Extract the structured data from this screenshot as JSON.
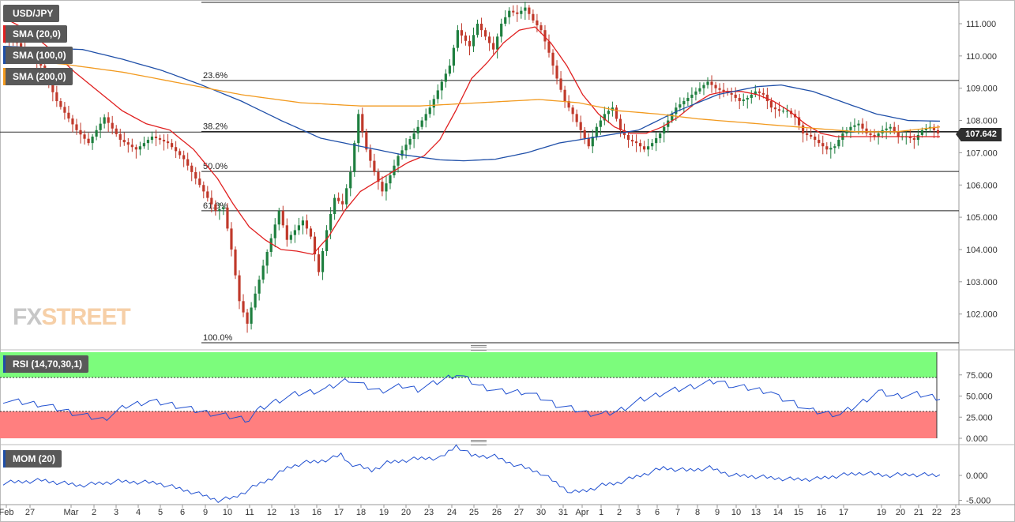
{
  "chart_data": {
    "type": "candlestick",
    "symbol": "USD/JPY",
    "last_price": "107.642",
    "price_axis": {
      "ylim": [
        101.2,
        111.7
      ],
      "ticks": [
        "111.000",
        "110.000",
        "109.000",
        "108.000",
        "107.000",
        "106.000",
        "105.000",
        "104.000",
        "103.000",
        "102.000"
      ],
      "tick_values": [
        111,
        110,
        109,
        108,
        107,
        106,
        105,
        104,
        103,
        102
      ]
    },
    "date_axis": {
      "labels": [
        "Feb",
        "27",
        "Mar",
        "2",
        "3",
        "4",
        "5",
        "6",
        "9",
        "10",
        "11",
        "12",
        "13",
        "16",
        "17",
        "18",
        "19",
        "20",
        "23",
        "24",
        "25",
        "26",
        "27",
        "30",
        "31",
        "Apr",
        "1",
        "2",
        "3",
        "6",
        "7",
        "8",
        "9",
        "10",
        "13",
        "14",
        "15",
        "16",
        "17",
        "19",
        "20",
        "21",
        "22",
        "23"
      ]
    },
    "fibonacci": [
      {
        "label": "23.6%",
        "value": 109.24
      },
      {
        "label": "38.2%",
        "value": 107.66
      },
      {
        "label": "50.0%",
        "value": 106.42
      },
      {
        "label": "61.8%",
        "value": 105.2
      },
      {
        "label": "100.0%",
        "value": 101.2
      }
    ],
    "price_anchors": [
      [
        0,
        110.5
      ],
      [
        4,
        110.4
      ],
      [
        10,
        109.7
      ],
      [
        14,
        108.6
      ],
      [
        19,
        107.7
      ],
      [
        22,
        107.3
      ],
      [
        26,
        108.1
      ],
      [
        30,
        107.4
      ],
      [
        34,
        107.1
      ],
      [
        38,
        107.5
      ],
      [
        42,
        107.3
      ],
      [
        46,
        106.8
      ],
      [
        50,
        106.0
      ],
      [
        54,
        105.2
      ],
      [
        56,
        105.3
      ],
      [
        58,
        104.0
      ],
      [
        60,
        102.4
      ],
      [
        62,
        101.7
      ],
      [
        63,
        102.2
      ],
      [
        66,
        103.5
      ],
      [
        70,
        105.2
      ],
      [
        72,
        104.3
      ],
      [
        76,
        104.9
      ],
      [
        78,
        104.4
      ],
      [
        80,
        103.3
      ],
      [
        82,
        104.6
      ],
      [
        84,
        105.6
      ],
      [
        86,
        105.4
      ],
      [
        88,
        106.4
      ],
      [
        90,
        108.2
      ],
      [
        92,
        107.1
      ],
      [
        94,
        106.4
      ],
      [
        96,
        105.8
      ],
      [
        98,
        106.3
      ],
      [
        100,
        106.9
      ],
      [
        104,
        107.6
      ],
      [
        108,
        108.4
      ],
      [
        111,
        109.2
      ],
      [
        113,
        109.7
      ],
      [
        115,
        110.8
      ],
      [
        118,
        110.3
      ],
      [
        120,
        111.0
      ],
      [
        122,
        110.6
      ],
      [
        124,
        110.2
      ],
      [
        126,
        111.0
      ],
      [
        128,
        111.4
      ],
      [
        130,
        111.3
      ],
      [
        132,
        111.5
      ],
      [
        134,
        111.1
      ],
      [
        136,
        110.8
      ],
      [
        138,
        110.1
      ],
      [
        140,
        109.3
      ],
      [
        142,
        108.6
      ],
      [
        144,
        108.2
      ],
      [
        146,
        107.7
      ],
      [
        148,
        107.2
      ],
      [
        150,
        107.8
      ],
      [
        152,
        108.2
      ],
      [
        154,
        108.4
      ],
      [
        156,
        107.7
      ],
      [
        158,
        107.4
      ],
      [
        160,
        107.3
      ],
      [
        162,
        107.1
      ],
      [
        164,
        107.3
      ],
      [
        166,
        107.6
      ],
      [
        168,
        108.0
      ],
      [
        170,
        108.4
      ],
      [
        172,
        108.6
      ],
      [
        174,
        108.8
      ],
      [
        176,
        109.0
      ],
      [
        178,
        109.2
      ],
      [
        180,
        109.0
      ],
      [
        182,
        108.9
      ],
      [
        184,
        108.8
      ],
      [
        186,
        108.6
      ],
      [
        188,
        108.7
      ],
      [
        190,
        108.9
      ],
      [
        192,
        108.8
      ],
      [
        194,
        108.4
      ],
      [
        196,
        108.3
      ],
      [
        198,
        108.3
      ],
      [
        200,
        108.1
      ],
      [
        202,
        107.6
      ],
      [
        204,
        107.5
      ],
      [
        206,
        107.3
      ],
      [
        208,
        107.1
      ],
      [
        210,
        107.2
      ],
      [
        212,
        107.6
      ],
      [
        214,
        107.8
      ],
      [
        216,
        107.9
      ],
      [
        218,
        107.6
      ],
      [
        220,
        107.5
      ],
      [
        222,
        107.7
      ],
      [
        224,
        107.8
      ],
      [
        226,
        107.5
      ],
      [
        228,
        107.5
      ],
      [
        230,
        107.4
      ],
      [
        232,
        107.7
      ],
      [
        234,
        107.8
      ],
      [
        236,
        107.6
      ]
    ],
    "series": [
      {
        "name": "SMA (20,0)",
        "color": "#e02020",
        "anchors": [
          [
            0,
            111.2
          ],
          [
            6,
            110.8
          ],
          [
            12,
            110.2
          ],
          [
            18,
            109.5
          ],
          [
            24,
            108.9
          ],
          [
            30,
            108.3
          ],
          [
            36,
            107.9
          ],
          [
            42,
            107.7
          ],
          [
            48,
            107.1
          ],
          [
            54,
            106.2
          ],
          [
            58,
            105.4
          ],
          [
            62,
            104.7
          ],
          [
            66,
            104.3
          ],
          [
            70,
            104.0
          ],
          [
            74,
            103.95
          ],
          [
            78,
            103.85
          ],
          [
            82,
            104.4
          ],
          [
            86,
            105.2
          ],
          [
            90,
            105.8
          ],
          [
            94,
            106.1
          ],
          [
            98,
            106.4
          ],
          [
            102,
            106.7
          ],
          [
            106,
            106.9
          ],
          [
            110,
            107.4
          ],
          [
            114,
            108.3
          ],
          [
            118,
            109.3
          ],
          [
            122,
            109.8
          ],
          [
            126,
            110.4
          ],
          [
            130,
            110.8
          ],
          [
            134,
            110.9
          ],
          [
            138,
            110.4
          ],
          [
            142,
            109.7
          ],
          [
            146,
            108.8
          ],
          [
            150,
            108.2
          ],
          [
            154,
            107.8
          ],
          [
            158,
            107.6
          ],
          [
            162,
            107.6
          ],
          [
            166,
            107.8
          ],
          [
            170,
            108.1
          ],
          [
            174,
            108.5
          ],
          [
            178,
            108.8
          ],
          [
            182,
            108.9
          ],
          [
            186,
            108.9
          ],
          [
            190,
            108.8
          ],
          [
            194,
            108.6
          ],
          [
            198,
            108.3
          ],
          [
            202,
            107.9
          ],
          [
            206,
            107.6
          ],
          [
            210,
            107.5
          ],
          [
            214,
            107.5
          ],
          [
            218,
            107.5
          ],
          [
            222,
            107.5
          ],
          [
            226,
            107.5
          ],
          [
            230,
            107.5
          ],
          [
            236,
            107.5
          ]
        ]
      },
      {
        "name": "SMA (100,0)",
        "color": "#1f4fa8",
        "anchors": [
          [
            0,
            110.3
          ],
          [
            10,
            110.25
          ],
          [
            20,
            110.2
          ],
          [
            30,
            109.9
          ],
          [
            40,
            109.55
          ],
          [
            50,
            109.1
          ],
          [
            60,
            108.6
          ],
          [
            70,
            108.0
          ],
          [
            80,
            107.45
          ],
          [
            90,
            107.2
          ],
          [
            100,
            106.95
          ],
          [
            110,
            106.78
          ],
          [
            116,
            106.75
          ],
          [
            124,
            106.8
          ],
          [
            132,
            107.0
          ],
          [
            140,
            107.3
          ],
          [
            150,
            107.5
          ],
          [
            160,
            107.7
          ],
          [
            170,
            108.3
          ],
          [
            180,
            108.8
          ],
          [
            190,
            109.05
          ],
          [
            196,
            109.1
          ],
          [
            204,
            108.9
          ],
          [
            212,
            108.55
          ],
          [
            220,
            108.2
          ],
          [
            228,
            108.0
          ],
          [
            236,
            107.98
          ]
        ]
      },
      {
        "name": "SMA (200,0)",
        "color": "#f29a1f",
        "anchors": [
          [
            0,
            109.9
          ],
          [
            15,
            109.75
          ],
          [
            30,
            109.5
          ],
          [
            45,
            109.15
          ],
          [
            60,
            108.8
          ],
          [
            75,
            108.55
          ],
          [
            90,
            108.45
          ],
          [
            105,
            108.45
          ],
          [
            120,
            108.55
          ],
          [
            135,
            108.65
          ],
          [
            145,
            108.55
          ],
          [
            155,
            108.3
          ],
          [
            165,
            108.2
          ],
          [
            175,
            108.05
          ],
          [
            185,
            107.95
          ],
          [
            195,
            107.85
          ],
          [
            205,
            107.75
          ],
          [
            215,
            107.65
          ],
          [
            225,
            107.65
          ],
          [
            236,
            107.8
          ]
        ]
      }
    ],
    "rsi": {
      "label": "RSI (14,70,30,1)",
      "overbought": 70,
      "oversold": 30,
      "ticks": [
        "75.000",
        "50.000",
        "25.000",
        "0.000"
      ],
      "tick_values": [
        75,
        50,
        25,
        0
      ],
      "values": [
        [
          0,
          45
        ],
        [
          10,
          40
        ],
        [
          20,
          28
        ],
        [
          26,
          22
        ],
        [
          32,
          38
        ],
        [
          38,
          44
        ],
        [
          44,
          40
        ],
        [
          50,
          33
        ],
        [
          56,
          28
        ],
        [
          60,
          25
        ],
        [
          64,
          22
        ],
        [
          66,
          32
        ],
        [
          70,
          42
        ],
        [
          76,
          52
        ],
        [
          80,
          55
        ],
        [
          84,
          58
        ],
        [
          88,
          66
        ],
        [
          90,
          70
        ],
        [
          94,
          62
        ],
        [
          98,
          56
        ],
        [
          104,
          62
        ],
        [
          108,
          58
        ],
        [
          114,
          68
        ],
        [
          118,
          76
        ],
        [
          120,
          72
        ],
        [
          124,
          62
        ],
        [
          130,
          55
        ],
        [
          136,
          55
        ],
        [
          140,
          48
        ],
        [
          144,
          40
        ],
        [
          148,
          35
        ],
        [
          152,
          30
        ],
        [
          156,
          28
        ],
        [
          160,
          32
        ],
        [
          166,
          45
        ],
        [
          172,
          54
        ],
        [
          178,
          60
        ],
        [
          184,
          66
        ],
        [
          186,
          68
        ],
        [
          190,
          62
        ],
        [
          196,
          58
        ],
        [
          200,
          55
        ],
        [
          202,
          48
        ],
        [
          206,
          42
        ],
        [
          210,
          33
        ],
        [
          214,
          30
        ],
        [
          218,
          28
        ],
        [
          222,
          38
        ],
        [
          228,
          55
        ],
        [
          232,
          50
        ],
        [
          238,
          52
        ],
        [
          244,
          48
        ]
      ]
    },
    "momentum": {
      "label": "MOM (20)",
      "ticks": [
        "0.000",
        "-5.000"
      ],
      "tick_values": [
        0,
        -5
      ],
      "values": [
        [
          0,
          -1.5
        ],
        [
          10,
          -1.0
        ],
        [
          20,
          -2.0
        ],
        [
          30,
          -1.2
        ],
        [
          40,
          -1.5
        ],
        [
          50,
          -3.5
        ],
        [
          56,
          -5.0
        ],
        [
          60,
          -4.5
        ],
        [
          66,
          -2.0
        ],
        [
          70,
          -0.5
        ],
        [
          74,
          1.5
        ],
        [
          78,
          2.5
        ],
        [
          82,
          2.8
        ],
        [
          86,
          3.5
        ],
        [
          88,
          4.2
        ],
        [
          90,
          2.5
        ],
        [
          96,
          1.0
        ],
        [
          100,
          2.5
        ],
        [
          104,
          3.0
        ],
        [
          110,
          3.5
        ],
        [
          114,
          3.5
        ],
        [
          118,
          6.0
        ],
        [
          122,
          4.0
        ],
        [
          128,
          3.8
        ],
        [
          132,
          2.5
        ],
        [
          136,
          1.5
        ],
        [
          140,
          0.5
        ],
        [
          144,
          -1.5
        ],
        [
          148,
          -3.5
        ],
        [
          152,
          -3.0
        ],
        [
          156,
          -2.0
        ],
        [
          160,
          -1.5
        ],
        [
          166,
          0.0
        ],
        [
          172,
          1.5
        ],
        [
          178,
          1.0
        ],
        [
          184,
          1.5
        ],
        [
          190,
          0.0
        ],
        [
          196,
          -0.2
        ],
        [
          200,
          -0.5
        ],
        [
          206,
          -0.8
        ],
        [
          212,
          -0.7
        ],
        [
          218,
          0.0
        ],
        [
          224,
          0.5
        ],
        [
          230,
          0.0
        ],
        [
          236,
          0.2
        ],
        [
          244,
          0.0
        ]
      ]
    }
  },
  "legends": {
    "symbol": "USD/JPY",
    "sma20": "SMA (20,0)",
    "sma100": "SMA (100,0)",
    "sma200": "SMA (200,0)",
    "rsi": "RSI (14,70,30,1)",
    "mom": "MOM (20)"
  },
  "logo": {
    "left": "FX",
    "right": "STREET"
  },
  "colors": {
    "bull": "#1e7f3f",
    "bear": "#c0392b",
    "rsi_ob": "#7cfc7c",
    "rsi_os": "#ff7f7f",
    "line": "#2050d0"
  }
}
